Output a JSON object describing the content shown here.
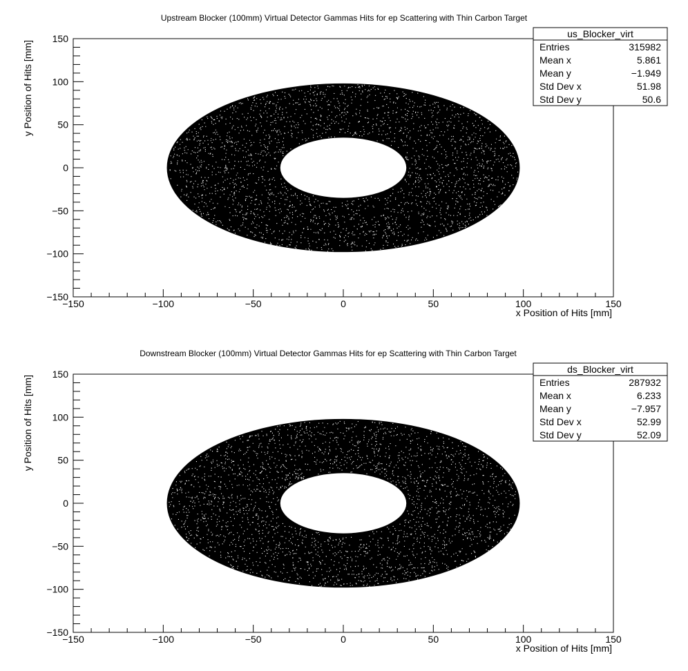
{
  "chart_data": [
    {
      "type": "scatter",
      "title": "Upstream Blocker (100mm) Virtual Detector Gammas Hits for ep Scattering with Thin Carbon Target",
      "xlabel": "x Position of Hits [mm]",
      "ylabel": "y Position of Hits [mm]",
      "xlim": [
        -150,
        150
      ],
      "ylim": [
        -150,
        150
      ],
      "x_ticks": [
        "−150",
        "−100",
        "−50",
        "0",
        "50",
        "100",
        "150"
      ],
      "y_ticks": [
        "−150",
        "−100",
        "−50",
        "0",
        "50",
        "100",
        "150"
      ],
      "grid": false,
      "distribution": {
        "shape": "annulus",
        "center": [
          0,
          0
        ],
        "outer_radius": [
          98,
          98
        ],
        "inner_radius": [
          35,
          35
        ],
        "seed": 11
      },
      "stats": {
        "name": "us_Blocker_virt",
        "rows": [
          {
            "label": "Entries",
            "value": "315982"
          },
          {
            "label": "Mean x",
            "value": "5.861"
          },
          {
            "label": "Mean y",
            "value": "−1.949"
          },
          {
            "label": "Std Dev x",
            "value": "51.98"
          },
          {
            "label": "Std Dev y",
            "value": "50.6"
          }
        ]
      }
    },
    {
      "type": "scatter",
      "title": "Downstream Blocker (100mm) Virtual Detector Gammas Hits for ep Scattering with Thin Carbon Target",
      "xlabel": "x Position of Hits [mm]",
      "ylabel": "y Position of Hits [mm]",
      "xlim": [
        -150,
        150
      ],
      "ylim": [
        -150,
        150
      ],
      "x_ticks": [
        "−150",
        "−100",
        "−50",
        "0",
        "50",
        "100",
        "150"
      ],
      "y_ticks": [
        "−150",
        "−100",
        "−50",
        "0",
        "50",
        "100",
        "150"
      ],
      "grid": false,
      "distribution": {
        "shape": "annulus",
        "center": [
          0,
          0
        ],
        "outer_radius": [
          98,
          98
        ],
        "inner_radius": [
          35,
          35
        ],
        "seed": 23
      },
      "stats": {
        "name": "ds_Blocker_virt",
        "rows": [
          {
            "label": "Entries",
            "value": "287932"
          },
          {
            "label": "Mean x",
            "value": "6.233"
          },
          {
            "label": "Mean y",
            "value": "−7.957"
          },
          {
            "label": "Std Dev x",
            "value": "52.99"
          },
          {
            "label": "Std Dev y",
            "value": "52.09"
          }
        ]
      }
    }
  ]
}
